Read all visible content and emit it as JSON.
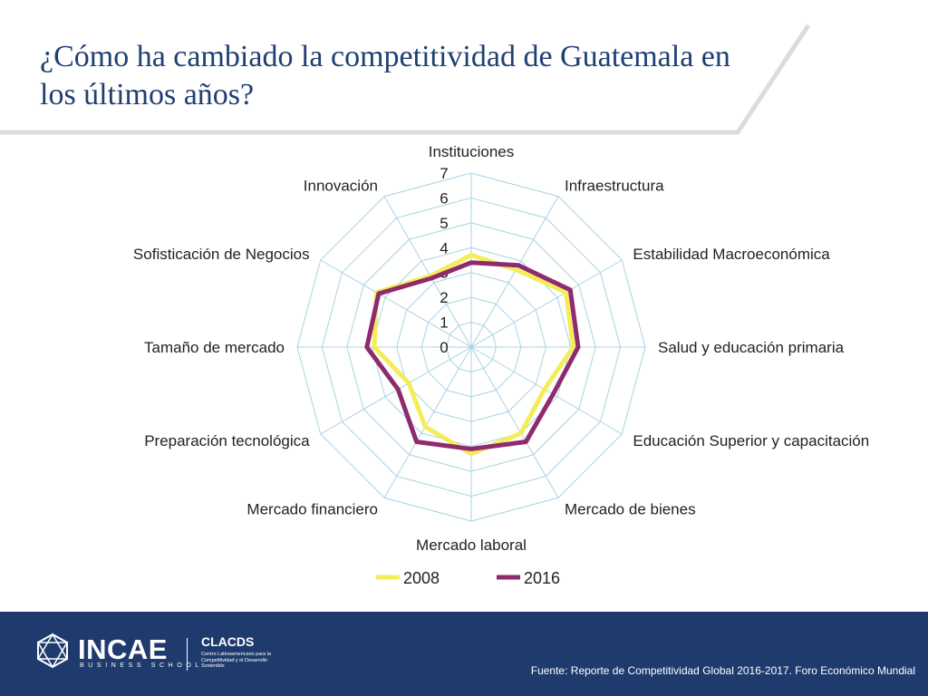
{
  "slide": {
    "title": "¿Cómo ha cambiado la competitividad de Guatemala en los últimos años?"
  },
  "colors": {
    "title": "#1f3f73",
    "grid": "#a9d3e4",
    "footer": "#1f3b6e",
    "series_2008": "#f5ec5a",
    "series_2016": "#8e2a6e"
  },
  "chart_data": {
    "type": "radar",
    "categories": [
      "Instituciones",
      "Infraestructura",
      "Estabilidad Macroeconómica",
      "Salud y educación primaria",
      "Educación Superior y capacitación",
      "Mercado de bienes",
      "Mercado laboral",
      "Mercado financiero",
      "Preparación tecnológica",
      "Tamaño de mercado",
      "Sofisticación de Negocios",
      "Innovación"
    ],
    "radial_ticks": [
      "0",
      "1",
      "2",
      "3",
      "4",
      "5",
      "6",
      "7"
    ],
    "rlim": [
      0,
      7
    ],
    "series": [
      {
        "name": "2008",
        "values": [
          3.7,
          3.6,
          4.4,
          4.1,
          3.4,
          4.0,
          4.3,
          3.7,
          2.9,
          3.9,
          4.4,
          3.3
        ]
      },
      {
        "name": "2016",
        "values": [
          3.4,
          3.8,
          4.6,
          4.3,
          3.8,
          4.4,
          4.1,
          4.4,
          3.4,
          4.2,
          4.3,
          3.2
        ]
      }
    ],
    "legend": "bottom",
    "grid": true
  },
  "footer": {
    "logo_text": "INCAE",
    "logo_subtext": "BUSINESS SCHOOL",
    "partner_name": "CLACDS",
    "partner_subtext": "Centro Latinoamericano para la Competitividad y el Desarrollo Sostenible",
    "source": "Fuente: Reporte de Competitividad Global 2016-2017. Foro Económico Mundial"
  }
}
